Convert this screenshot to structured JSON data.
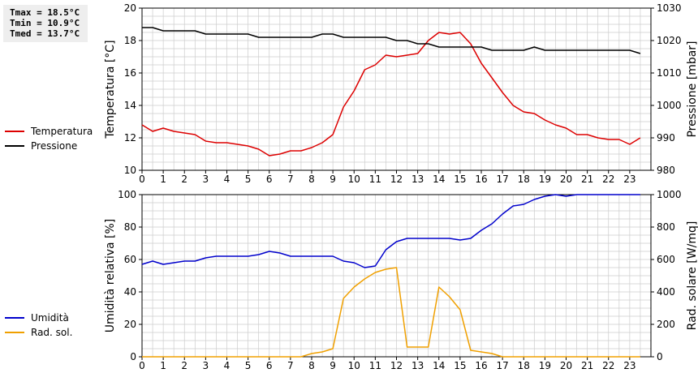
{
  "stats": {
    "tmax": "Tmax = 18.5°C",
    "tmin": "Tmin = 10.9°C",
    "tmed": "Tmed = 13.7°C"
  },
  "colors": {
    "temperature": "#dd0000",
    "pressure": "#000000",
    "humidity": "#0000cc",
    "radiation": "#f0a000",
    "grid": "#cccccc"
  },
  "chart_data": [
    {
      "type": "line",
      "title": "",
      "xlabel": "",
      "ylabel": "Temperatura [°C]",
      "ylabel_right": "Pressione [mbar]",
      "xlim": [
        0,
        24
      ],
      "ylim": [
        10,
        20
      ],
      "ylim_right": [
        980,
        1030
      ],
      "x_ticks": [
        0,
        1,
        2,
        3,
        4,
        5,
        6,
        7,
        8,
        9,
        10,
        11,
        12,
        13,
        14,
        15,
        16,
        17,
        18,
        19,
        20,
        21,
        22,
        23
      ],
      "y_ticks": [
        10,
        12,
        14,
        16,
        18,
        20
      ],
      "y_ticks_right": [
        980,
        990,
        1000,
        1010,
        1020,
        1030
      ],
      "grid": true,
      "legend": "left",
      "series": [
        {
          "name": "Temperatura",
          "axis": "left",
          "x": [
            0,
            0.5,
            1,
            1.5,
            2,
            2.5,
            3,
            3.5,
            4,
            4.5,
            5,
            5.5,
            6,
            6.5,
            7,
            7.5,
            8,
            8.5,
            9,
            9.5,
            10,
            10.5,
            11,
            11.5,
            12,
            12.5,
            13,
            13.5,
            14,
            14.5,
            15,
            15.5,
            16,
            16.5,
            17,
            17.5,
            18,
            18.5,
            19,
            19.5,
            20,
            20.5,
            21,
            21.5,
            22,
            22.5,
            23,
            23.5
          ],
          "values": [
            12.8,
            12.4,
            12.6,
            12.4,
            12.3,
            12.2,
            11.8,
            11.7,
            11.7,
            11.6,
            11.5,
            11.3,
            10.9,
            11.0,
            11.2,
            11.2,
            11.4,
            11.7,
            12.2,
            13.9,
            14.9,
            16.2,
            16.5,
            17.1,
            17.0,
            17.1,
            17.2,
            18.0,
            18.5,
            18.4,
            18.5,
            17.8,
            16.6,
            15.7,
            14.8,
            14.0,
            13.6,
            13.5,
            13.1,
            12.8,
            12.6,
            12.2,
            12.2,
            12.0,
            11.9,
            11.9,
            11.6,
            12.0
          ]
        },
        {
          "name": "Pressione",
          "axis": "right",
          "x": [
            0,
            0.5,
            1,
            1.5,
            2,
            2.5,
            3,
            3.5,
            4,
            4.5,
            5,
            5.5,
            6,
            6.5,
            7,
            7.5,
            8,
            8.5,
            9,
            9.5,
            10,
            10.5,
            11,
            11.5,
            12,
            12.5,
            13,
            13.5,
            14,
            14.5,
            15,
            15.5,
            16,
            16.5,
            17,
            17.5,
            18,
            18.5,
            19,
            19.5,
            20,
            20.5,
            21,
            21.5,
            22,
            22.5,
            23,
            23.5
          ],
          "values": [
            1024,
            1024,
            1023,
            1023,
            1023,
            1023,
            1022,
            1022,
            1022,
            1022,
            1022,
            1021,
            1021,
            1021,
            1021,
            1021,
            1021,
            1022,
            1022,
            1021,
            1021,
            1021,
            1021,
            1021,
            1020,
            1020,
            1019,
            1019,
            1018,
            1018,
            1018,
            1018,
            1018,
            1017,
            1017,
            1017,
            1017,
            1018,
            1017,
            1017,
            1017,
            1017,
            1017,
            1017,
            1017,
            1017,
            1017,
            1016
          ]
        }
      ]
    },
    {
      "type": "line",
      "title": "",
      "xlabel": "",
      "ylabel": "Umidità relativa [%]",
      "ylabel_right": "Rad. solare [W/mq]",
      "xlim": [
        0,
        24
      ],
      "ylim": [
        0,
        100
      ],
      "ylim_right": [
        0,
        1000
      ],
      "x_ticks": [
        0,
        1,
        2,
        3,
        4,
        5,
        6,
        7,
        8,
        9,
        10,
        11,
        12,
        13,
        14,
        15,
        16,
        17,
        18,
        19,
        20,
        21,
        22,
        23
      ],
      "y_ticks": [
        0,
        20,
        40,
        60,
        80,
        100
      ],
      "y_ticks_right": [
        0,
        200,
        400,
        600,
        800,
        1000
      ],
      "grid": true,
      "legend": "left",
      "series": [
        {
          "name": "Umidità",
          "axis": "left",
          "x": [
            0,
            0.5,
            1,
            1.5,
            2,
            2.5,
            3,
            3.5,
            4,
            4.5,
            5,
            5.5,
            6,
            6.5,
            7,
            7.5,
            8,
            8.5,
            9,
            9.5,
            10,
            10.5,
            11,
            11.5,
            12,
            12.5,
            13,
            13.5,
            14,
            14.5,
            15,
            15.5,
            16,
            16.5,
            17,
            17.5,
            18,
            18.5,
            19,
            19.5,
            20,
            20.5,
            21,
            21.5,
            22,
            22.5,
            23,
            23.5
          ],
          "values": [
            57,
            59,
            57,
            58,
            59,
            59,
            61,
            62,
            62,
            62,
            62,
            63,
            65,
            64,
            62,
            62,
            62,
            62,
            62,
            59,
            58,
            55,
            56,
            66,
            71,
            73,
            73,
            73,
            73,
            73,
            72,
            73,
            78,
            82,
            88,
            93,
            94,
            97,
            99,
            100,
            99,
            100,
            100,
            100,
            100,
            100,
            100,
            100
          ]
        },
        {
          "name": "Rad. sol.",
          "axis": "right",
          "x": [
            0,
            0.5,
            1,
            1.5,
            2,
            2.5,
            3,
            3.5,
            4,
            4.5,
            5,
            5.5,
            6,
            6.5,
            7,
            7.5,
            8,
            8.5,
            9,
            9.5,
            10,
            10.5,
            11,
            11.5,
            12,
            12.5,
            13,
            13.5,
            14,
            14.5,
            15,
            15.5,
            16,
            16.5,
            17,
            17.5,
            18,
            18.5,
            19,
            19.5,
            20,
            20.5,
            21,
            21.5,
            22,
            22.5,
            23,
            23.5
          ],
          "values": [
            0,
            0,
            0,
            0,
            0,
            0,
            0,
            0,
            0,
            0,
            0,
            0,
            0,
            0,
            0,
            0,
            20,
            30,
            50,
            360,
            430,
            480,
            520,
            540,
            550,
            60,
            60,
            60,
            430,
            370,
            290,
            40,
            30,
            20,
            0,
            0,
            0,
            0,
            0,
            0,
            0,
            0,
            0,
            0,
            0,
            0,
            0,
            0
          ]
        }
      ]
    }
  ]
}
